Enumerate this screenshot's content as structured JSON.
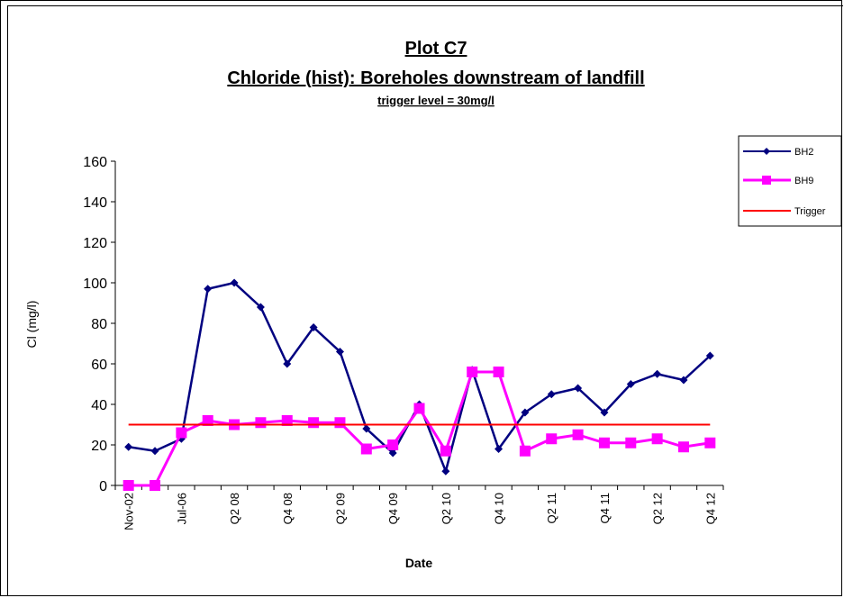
{
  "colors": {
    "bh2": "#000080",
    "bh9": "#ff00ff",
    "trigger": "#ff0000",
    "axis": "#000000",
    "text": "#000000"
  },
  "chart_data": {
    "type": "line",
    "title": "Plot C7",
    "subtitle": "Chloride (hist): Boreholes downstream of landfill",
    "note": "trigger level = 30mg/l",
    "xlabel": "Date",
    "ylabel": "Cl (mg/l)",
    "ylim": [
      0,
      160
    ],
    "yticks": [
      0,
      20,
      40,
      60,
      80,
      100,
      120,
      140,
      160
    ],
    "grid": false,
    "legend_position": "right",
    "categories": [
      "Nov-02",
      "",
      "Jul-06",
      "",
      "Q2 08",
      "",
      "Q4 08",
      "",
      "Q2 09",
      "",
      "Q4 09",
      "",
      "Q2 10",
      "",
      "Q4 10",
      "",
      "Q2 11",
      "",
      "Q4 11",
      "",
      "Q2 12",
      "",
      "Q4 12"
    ],
    "series": [
      {
        "name": "BH2",
        "marker": "diamond",
        "values": [
          19,
          17,
          23,
          97,
          100,
          88,
          60,
          78,
          66,
          28,
          16,
          40,
          7,
          57,
          18,
          36,
          45,
          48,
          36,
          50,
          55,
          52,
          64
        ]
      },
      {
        "name": "BH9",
        "marker": "square",
        "values": [
          0,
          0,
          26,
          32,
          30,
          31,
          32,
          31,
          31,
          18,
          20,
          38,
          17,
          56,
          56,
          17,
          23,
          25,
          21,
          21,
          23,
          19,
          21
        ]
      },
      {
        "name": "Trigger",
        "marker": "none",
        "values": [
          30,
          30,
          30,
          30,
          30,
          30,
          30,
          30,
          30,
          30,
          30,
          30,
          30,
          30,
          30,
          30,
          30,
          30,
          30,
          30,
          30,
          30,
          30
        ]
      }
    ]
  }
}
